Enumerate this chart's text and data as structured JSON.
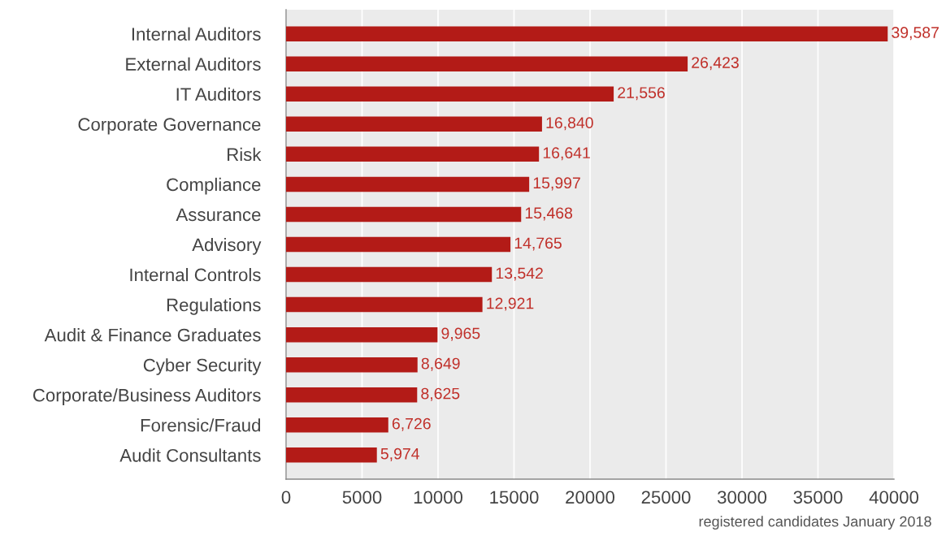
{
  "chart_data": {
    "type": "bar",
    "orientation": "horizontal",
    "categories": [
      "Internal Auditors",
      "External Auditors",
      "IT Auditors",
      "Corporate Governance",
      "Risk",
      "Compliance",
      "Assurance",
      "Advisory",
      "Internal Controls",
      "Regulations",
      "Audit & Finance Graduates",
      "Cyber Security",
      "Corporate/Business Auditors",
      "Forensic/Fraud",
      "Audit Consultants"
    ],
    "values": [
      39587,
      26423,
      21556,
      16840,
      16641,
      15997,
      15468,
      14765,
      13542,
      12921,
      9965,
      8649,
      8625,
      6726,
      5974
    ],
    "value_labels": [
      "39,587",
      "26,423",
      "21,556",
      "16,840",
      "16,641",
      "15,997",
      "15,468",
      "14,765",
      "13,542",
      "12,921",
      "9,965",
      "8,649",
      "8,625",
      "6,726",
      "5,974"
    ],
    "color": "#b31b17",
    "xlim": [
      0,
      40000
    ],
    "xticks": [
      0,
      5000,
      10000,
      15000,
      20000,
      25000,
      30000,
      35000,
      40000
    ],
    "grid": "x",
    "legend": false,
    "annotations": [
      "registered candidates January 2018"
    ]
  }
}
